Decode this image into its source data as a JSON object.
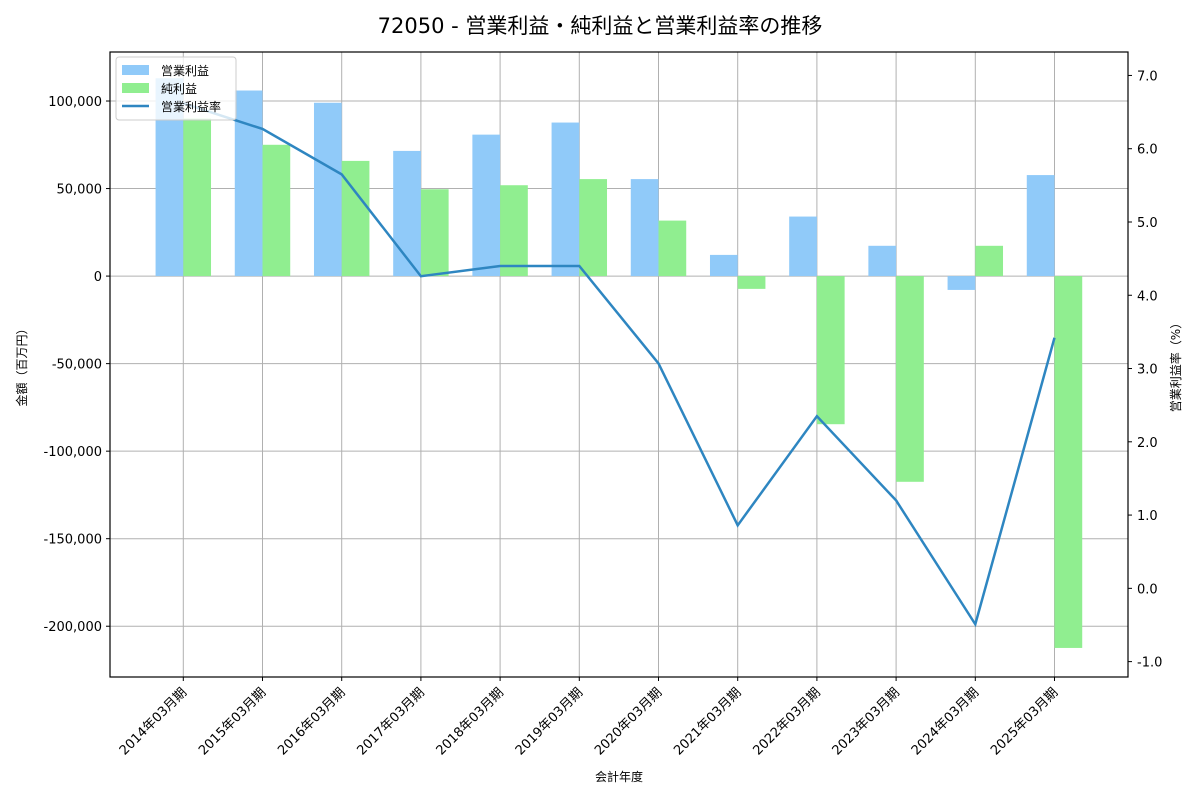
{
  "chart_data": {
    "type": "bar",
    "title": "72050 - 営業利益・純利益と営業利益率の推移",
    "xlabel": "会計年度",
    "ylabel": "金額（百万円）",
    "y2label": "営業利益率（%）",
    "categories": [
      "2014年03月期",
      "2015年03月期",
      "2016年03月期",
      "2017年03月期",
      "2018年03月期",
      "2019年03月期",
      "2020年03月期",
      "2021年03月期",
      "2022年03月期",
      "2023年03月期",
      "2024年03月期",
      "2025年03月期"
    ],
    "series": [
      {
        "name": "営業利益",
        "type": "bar",
        "axis": "left",
        "color": "#90CAF9",
        "values": [
          113000,
          106000,
          99000,
          71500,
          80800,
          87700,
          55400,
          12100,
          34000,
          17300,
          -7900,
          57700
        ]
      },
      {
        "name": "純利益",
        "type": "bar",
        "axis": "left",
        "color": "#90EE90",
        "values": [
          90000,
          75000,
          65800,
          49600,
          51900,
          55400,
          31700,
          -7300,
          -84600,
          -117500,
          17300,
          -212400
        ]
      },
      {
        "name": "営業利益率",
        "type": "line",
        "axis": "right",
        "color": "#2E86C1",
        "values": [
          6.62,
          6.27,
          5.65,
          4.26,
          4.4,
          4.4,
          3.07,
          0.86,
          2.35,
          1.2,
          -0.49,
          3.42
        ]
      }
    ],
    "ylim": [
      -229000,
      128000
    ],
    "y2lim": [
      -1.21,
      7.32
    ],
    "yticks": [
      -200000,
      -150000,
      -100000,
      -50000,
      0,
      50000,
      100000
    ],
    "yticklabels": [
      "-200,000",
      "-150,000",
      "-100,000",
      "-50,000",
      "0",
      "50,000",
      "100,000"
    ],
    "y2ticks": [
      -1.0,
      0.0,
      1.0,
      2.0,
      3.0,
      4.0,
      5.0,
      6.0,
      7.0
    ],
    "y2ticklabels": [
      "-1.0",
      "0.0",
      "1.0",
      "2.0",
      "3.0",
      "4.0",
      "5.0",
      "6.0",
      "7.0"
    ],
    "grid": true,
    "legend_position": "upper left"
  }
}
